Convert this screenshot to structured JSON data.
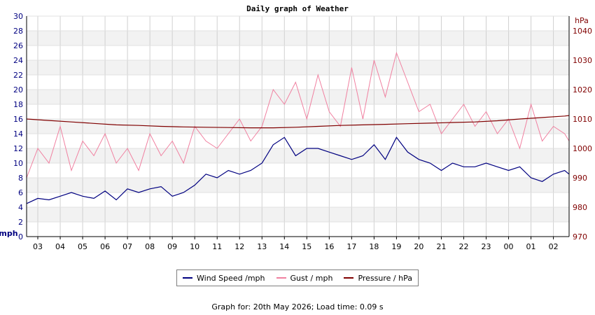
{
  "chart_data": {
    "type": "line",
    "title": "Daily graph of Weather",
    "left_axis": {
      "label": "mph",
      "ylim": [
        0,
        30
      ],
      "ticks": [
        0,
        2,
        4,
        6,
        8,
        10,
        12,
        14,
        16,
        18,
        20,
        22,
        24,
        26,
        28,
        30
      ],
      "color": "#000080"
    },
    "right_axis": {
      "label": "hPa",
      "ylim": [
        970,
        1045
      ],
      "ticks": [
        970,
        980,
        990,
        1000,
        1010,
        1020,
        1030,
        1040
      ],
      "color": "#800000"
    },
    "x_ticks": [
      "03",
      "04",
      "05",
      "06",
      "07",
      "08",
      "09",
      "10",
      "11",
      "12",
      "13",
      "14",
      "15",
      "16",
      "17",
      "18",
      "19",
      "20",
      "21",
      "22",
      "23",
      "00",
      "01",
      "02"
    ],
    "x_range": [
      0,
      24.2
    ],
    "grid": true,
    "series": [
      {
        "name": "Wind Speed /mph",
        "axis": "left",
        "color": "#000080",
        "x": [
          0,
          0.5,
          1,
          1.5,
          2,
          2.5,
          3,
          3.5,
          4,
          4.5,
          5,
          5.5,
          6,
          6.5,
          7,
          7.5,
          8,
          8.5,
          9,
          9.5,
          10,
          10.5,
          11,
          11.5,
          12,
          12.5,
          13,
          13.5,
          14,
          14.5,
          15,
          15.5,
          16,
          16.5,
          17,
          17.5,
          18,
          18.5,
          19,
          19.5,
          20,
          20.5,
          21,
          21.5,
          22,
          22.5,
          23,
          23.5,
          24,
          24.2
        ],
        "values": [
          4.5,
          5.2,
          5.0,
          5.5,
          6.0,
          5.5,
          5.2,
          6.2,
          5.0,
          6.5,
          6.0,
          6.5,
          6.8,
          5.5,
          6.0,
          7.0,
          8.5,
          8.0,
          9.0,
          8.5,
          9.0,
          10.0,
          12.5,
          13.5,
          11.0,
          12.0,
          12.0,
          11.5,
          11.0,
          10.5,
          11.0,
          12.5,
          10.5,
          13.5,
          11.5,
          10.5,
          10.0,
          9.0,
          10.0,
          9.5,
          9.5,
          10.0,
          9.5,
          9.0,
          9.5,
          8.0,
          7.5,
          8.5,
          9.0,
          8.5
        ]
      },
      {
        "name": "Gust / mph",
        "axis": "left",
        "color": "#f080a0",
        "x": [
          0,
          0.5,
          1,
          1.5,
          2,
          2.5,
          3,
          3.5,
          4,
          4.5,
          5,
          5.5,
          6,
          6.5,
          7,
          7.5,
          8,
          8.5,
          9,
          9.5,
          10,
          10.5,
          11,
          11.5,
          12,
          12.5,
          13,
          13.5,
          14,
          14.5,
          15,
          15.5,
          16,
          16.5,
          17,
          17.5,
          18,
          18.5,
          19,
          19.5,
          20,
          20.5,
          21,
          21.5,
          22,
          22.5,
          23,
          23.5,
          24,
          24.2
        ],
        "values": [
          8,
          12,
          10,
          15,
          9,
          13,
          11,
          14,
          10,
          12,
          9,
          14,
          11,
          13,
          10,
          15,
          13,
          12,
          14,
          16,
          13,
          15,
          20,
          18,
          21,
          16,
          22,
          17,
          15,
          23,
          16,
          24,
          19,
          25,
          21,
          17,
          18,
          14,
          16,
          18,
          15,
          17,
          14,
          16,
          12,
          18,
          13,
          15,
          14,
          13
        ]
      },
      {
        "name": "Pressure / hPa",
        "axis": "right",
        "color": "#800000",
        "x": [
          0,
          1,
          2,
          3,
          4,
          5,
          6,
          7,
          8,
          9,
          10,
          11,
          12,
          13,
          14,
          15,
          16,
          17,
          18,
          19,
          20,
          21,
          22,
          23,
          24,
          24.2
        ],
        "values": [
          1010,
          1009.5,
          1009,
          1008.5,
          1008,
          1007.8,
          1007.5,
          1007.3,
          1007.2,
          1007.1,
          1007.0,
          1007.0,
          1007.2,
          1007.5,
          1007.8,
          1008.0,
          1008.2,
          1008.4,
          1008.6,
          1008.8,
          1009.0,
          1009.4,
          1010.0,
          1010.5,
          1011.0,
          1011.2
        ]
      }
    ],
    "legend": [
      "Wind Speed /mph",
      "Gust / mph",
      "Pressure / hPa"
    ],
    "legend_position": "bottom-center"
  },
  "footer": "Graph for: 20th May 2026; Load time: 0.09 s"
}
